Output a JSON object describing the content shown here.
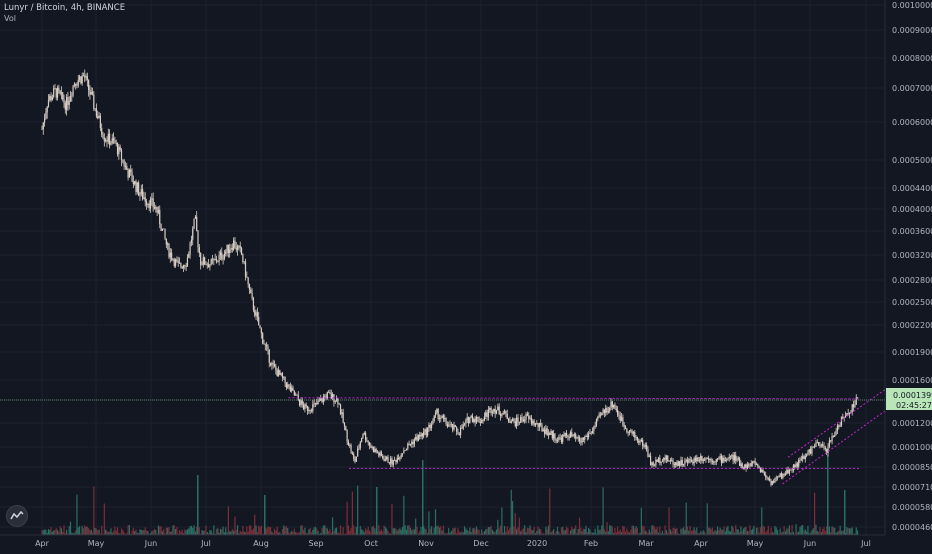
{
  "header": {
    "title": "Lunyr / Bitcoin, 4h, BINANCE",
    "vol_label": "Vol"
  },
  "colors": {
    "background": "#131722",
    "grid": "#1e222d",
    "candles": "#d9cfc6",
    "pattern_lines": "#c026d3",
    "price_line": "#9fdf9f",
    "price_badge": "#b8e6b8",
    "volume_up": "#2b6e63",
    "volume_down": "#7a2f3a"
  },
  "price_badge": {
    "value": "0.0001399",
    "countdown": "02:45:27"
  },
  "chart_data": {
    "type": "candlestick",
    "title": "Lunyr / Bitcoin, 4h, BINANCE",
    "xlabel": "",
    "ylabel": "",
    "y_scale": "log",
    "ylim": [
      4.6e-05,
      0.0001
    ],
    "x_ticks": [
      "Apr",
      "May",
      "Jun",
      "Jul",
      "Aug",
      "Sep",
      "Oct",
      "Nov",
      "Dec",
      "2020",
      "Feb",
      "Mar",
      "Apr",
      "May",
      "Jun",
      "Jul"
    ],
    "y_ticks": [
      "0.0010000",
      "0.0009000",
      "0.0008000",
      "0.0007000",
      "0.0006000",
      "0.0005000",
      "0.0004400",
      "0.0004000",
      "0.0003600",
      "0.0003200",
      "0.0002800",
      "0.0002500",
      "0.0002200",
      "0.0001900",
      "0.0001600",
      "0.0001399",
      "0.0001200",
      "0.0001000",
      "0.0000850",
      "0.0000710",
      "0.0000580",
      "0.0000460"
    ],
    "y_tick_values": [
      0.001,
      0.0009,
      0.0008,
      0.0007,
      0.0006,
      0.0005,
      0.00044,
      0.0004,
      0.00036,
      0.00032,
      0.00028,
      0.00025,
      0.00022,
      0.00019,
      0.00016,
      0.0001399,
      0.00012,
      0.0001,
      8.5e-05,
      7.1e-05,
      5.8e-05,
      4.6e-05
    ],
    "price_path": [
      {
        "t": 0.0,
        "p": 0.00058
      },
      {
        "t": 0.1,
        "p": 0.00066
      },
      {
        "t": 0.25,
        "p": 0.00069
      },
      {
        "t": 0.45,
        "p": 0.00065
      },
      {
        "t": 0.6,
        "p": 0.00072
      },
      {
        "t": 0.78,
        "p": 0.00074
      },
      {
        "t": 1.0,
        "p": 0.00063
      },
      {
        "t": 1.15,
        "p": 0.00056
      },
      {
        "t": 1.35,
        "p": 0.00054
      },
      {
        "t": 1.55,
        "p": 0.00048
      },
      {
        "t": 1.8,
        "p": 0.00043
      },
      {
        "t": 2.1,
        "p": 0.0004
      },
      {
        "t": 2.3,
        "p": 0.00033
      },
      {
        "t": 2.5,
        "p": 0.0003
      },
      {
        "t": 2.65,
        "p": 0.00031
      },
      {
        "t": 2.8,
        "p": 0.00038
      },
      {
        "t": 2.9,
        "p": 0.00031
      },
      {
        "t": 3.1,
        "p": 0.000305
      },
      {
        "t": 3.3,
        "p": 0.00032
      },
      {
        "t": 3.5,
        "p": 0.00034
      },
      {
        "t": 3.65,
        "p": 0.00032
      },
      {
        "t": 3.8,
        "p": 0.00026
      },
      {
        "t": 4.0,
        "p": 0.00021
      },
      {
        "t": 4.2,
        "p": 0.000175
      },
      {
        "t": 4.4,
        "p": 0.00016
      },
      {
        "t": 4.6,
        "p": 0.000145
      },
      {
        "t": 4.8,
        "p": 0.000132
      },
      {
        "t": 5.0,
        "p": 0.000135
      },
      {
        "t": 5.2,
        "p": 0.000145
      },
      {
        "t": 5.4,
        "p": 0.00014
      },
      {
        "t": 5.55,
        "p": 0.00011
      },
      {
        "t": 5.7,
        "p": 8.8e-05
      },
      {
        "t": 5.85,
        "p": 0.000112
      },
      {
        "t": 6.0,
        "p": 0.0001
      },
      {
        "t": 6.2,
        "p": 9.2e-05
      },
      {
        "t": 6.4,
        "p": 8.8e-05
      },
      {
        "t": 6.6,
        "p": 9.8e-05
      },
      {
        "t": 6.8,
        "p": 0.000106
      },
      {
        "t": 7.0,
        "p": 0.000112
      },
      {
        "t": 7.2,
        "p": 0.000128
      },
      {
        "t": 7.4,
        "p": 0.000118
      },
      {
        "t": 7.6,
        "p": 0.000112
      },
      {
        "t": 7.8,
        "p": 0.000125
      },
      {
        "t": 8.0,
        "p": 0.000122
      },
      {
        "t": 8.2,
        "p": 0.000133
      },
      {
        "t": 8.4,
        "p": 0.000128
      },
      {
        "t": 8.6,
        "p": 0.00012
      },
      {
        "t": 8.8,
        "p": 0.000125
      },
      {
        "t": 9.0,
        "p": 0.000118
      },
      {
        "t": 9.2,
        "p": 0.000112
      },
      {
        "t": 9.4,
        "p": 0.000106
      },
      {
        "t": 9.6,
        "p": 0.00011
      },
      {
        "t": 9.8,
        "p": 0.000104
      },
      {
        "t": 10.0,
        "p": 0.000112
      },
      {
        "t": 10.2,
        "p": 0.000128
      },
      {
        "t": 10.4,
        "p": 0.000137
      },
      {
        "t": 10.6,
        "p": 0.000118
      },
      {
        "t": 10.8,
        "p": 0.000108
      },
      {
        "t": 11.0,
        "p": 0.0001
      },
      {
        "t": 11.1,
        "p": 8.6e-05
      },
      {
        "t": 11.3,
        "p": 9.2e-05
      },
      {
        "t": 11.5,
        "p": 8.8e-05
      },
      {
        "t": 11.7,
        "p": 8.8e-05
      },
      {
        "t": 12.0,
        "p": 9.2e-05
      },
      {
        "t": 12.3,
        "p": 9e-05
      },
      {
        "t": 12.6,
        "p": 9.2e-05
      },
      {
        "t": 12.8,
        "p": 8.5e-05
      },
      {
        "t": 13.0,
        "p": 8.8e-05
      },
      {
        "t": 13.3,
        "p": 7.4e-05
      },
      {
        "t": 13.6,
        "p": 8.2e-05
      },
      {
        "t": 13.9,
        "p": 9.2e-05
      },
      {
        "t": 14.1,
        "p": 0.000102
      },
      {
        "t": 14.3,
        "p": 9.8e-05
      },
      {
        "t": 14.5,
        "p": 0.000118
      },
      {
        "t": 14.7,
        "p": 0.00013
      },
      {
        "t": 14.85,
        "p": 0.000141
      }
    ],
    "lines": [
      {
        "name": "range-top",
        "from": {
          "t": 4.5,
          "p": 0.000142
        },
        "to": {
          "t": 14.9,
          "p": 0.000141
        }
      },
      {
        "name": "range-bottom",
        "from": {
          "t": 5.6,
          "p": 8.4e-05
        },
        "to": {
          "t": 14.9,
          "p": 8.4e-05
        }
      },
      {
        "name": "channel-upper",
        "from": {
          "t": 13.6,
          "p": 9.2e-05
        },
        "to": {
          "t": 15.4,
          "p": 0.00015
        }
      },
      {
        "name": "channel-lower",
        "from": {
          "t": 13.5,
          "p": 7.3e-05
        },
        "to": {
          "t": 15.4,
          "p": 0.00013
        }
      }
    ]
  }
}
